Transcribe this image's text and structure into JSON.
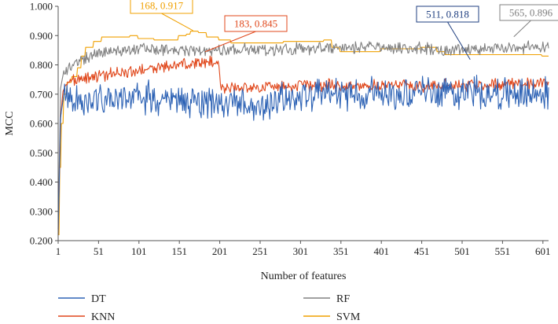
{
  "chart_data": {
    "type": "line",
    "xlabel": "Number of features",
    "ylabel": "MCC",
    "xlim": [
      1,
      608
    ],
    "ylim": [
      0.2,
      1.0
    ],
    "x_ticks": [
      1,
      51,
      101,
      151,
      201,
      251,
      301,
      351,
      401,
      451,
      501,
      551,
      601
    ],
    "y_ticks": [
      "0.200",
      "0.300",
      "0.400",
      "0.500",
      "0.600",
      "0.700",
      "0.800",
      "0.900",
      "1.000"
    ],
    "grid": false,
    "legend_placement": "bottom",
    "series": [
      {
        "name": "DT",
        "color": "#2e63b5",
        "noise": 0.045,
        "points": [
          [
            1,
            0.22
          ],
          [
            4,
            0.62
          ],
          [
            8,
            0.7
          ],
          [
            15,
            0.68
          ],
          [
            100,
            0.69
          ],
          [
            200,
            0.67
          ],
          [
            230,
            0.66
          ],
          [
            250,
            0.65
          ],
          [
            280,
            0.69
          ],
          [
            350,
            0.7
          ],
          [
            450,
            0.71
          ],
          [
            511,
            0.71
          ],
          [
            550,
            0.7
          ],
          [
            608,
            0.7
          ]
        ]
      },
      {
        "name": "KNN",
        "color": "#e0471b",
        "noise": 0.016,
        "points": [
          [
            1,
            0.22
          ],
          [
            4,
            0.62
          ],
          [
            7,
            0.71
          ],
          [
            12,
            0.74
          ],
          [
            40,
            0.76
          ],
          [
            100,
            0.78
          ],
          [
            150,
            0.8
          ],
          [
            183,
            0.81
          ],
          [
            199,
            0.81
          ],
          [
            203,
            0.72
          ],
          [
            215,
            0.72
          ],
          [
            300,
            0.73
          ],
          [
            400,
            0.73
          ],
          [
            500,
            0.73
          ],
          [
            608,
            0.74
          ]
        ]
      },
      {
        "name": "RF",
        "color": "#808080",
        "noise": 0.016,
        "points": [
          [
            1,
            0.24
          ],
          [
            4,
            0.72
          ],
          [
            8,
            0.78
          ],
          [
            20,
            0.8
          ],
          [
            50,
            0.84
          ],
          [
            100,
            0.86
          ],
          [
            150,
            0.85
          ],
          [
            200,
            0.85
          ],
          [
            300,
            0.855
          ],
          [
            400,
            0.86
          ],
          [
            450,
            0.855
          ],
          [
            500,
            0.85
          ],
          [
            565,
            0.86
          ],
          [
            608,
            0.86
          ]
        ]
      },
      {
        "name": "SVM",
        "color": "#f0a000",
        "steps": [
          [
            1,
            0.22
          ],
          [
            3,
            0.45
          ],
          [
            5,
            0.6
          ],
          [
            8,
            0.7
          ],
          [
            12,
            0.74
          ],
          [
            18,
            0.76
          ],
          [
            25,
            0.79
          ],
          [
            30,
            0.83
          ],
          [
            35,
            0.86
          ],
          [
            45,
            0.88
          ],
          [
            55,
            0.895
          ],
          [
            90,
            0.9
          ],
          [
            100,
            0.89
          ],
          [
            120,
            0.885
          ],
          [
            150,
            0.9
          ],
          [
            160,
            0.905
          ],
          [
            165,
            0.915
          ],
          [
            175,
            0.91
          ],
          [
            185,
            0.895
          ],
          [
            200,
            0.885
          ],
          [
            215,
            0.875
          ],
          [
            280,
            0.88
          ],
          [
            330,
            0.885
          ],
          [
            340,
            0.86
          ],
          [
            350,
            0.845
          ],
          [
            400,
            0.855
          ],
          [
            450,
            0.86
          ],
          [
            470,
            0.845
          ],
          [
            480,
            0.835
          ],
          [
            600,
            0.83
          ],
          [
            608,
            0.83
          ]
        ]
      }
    ],
    "annotations": [
      {
        "text": "168, 0.917",
        "x": 168,
        "y": 0.917,
        "color": "#f0a000",
        "boxed": true
      },
      {
        "text": "183, 0.845",
        "x": 183,
        "y": 0.845,
        "color": "#e0471b",
        "boxed": true
      },
      {
        "text": "511, 0.818",
        "x": 511,
        "y": 0.818,
        "color": "#1f3f80",
        "boxed": true
      },
      {
        "text": "565, 0.896",
        "x": 565,
        "y": 0.896,
        "color": "#808080",
        "boxed": true
      }
    ]
  }
}
